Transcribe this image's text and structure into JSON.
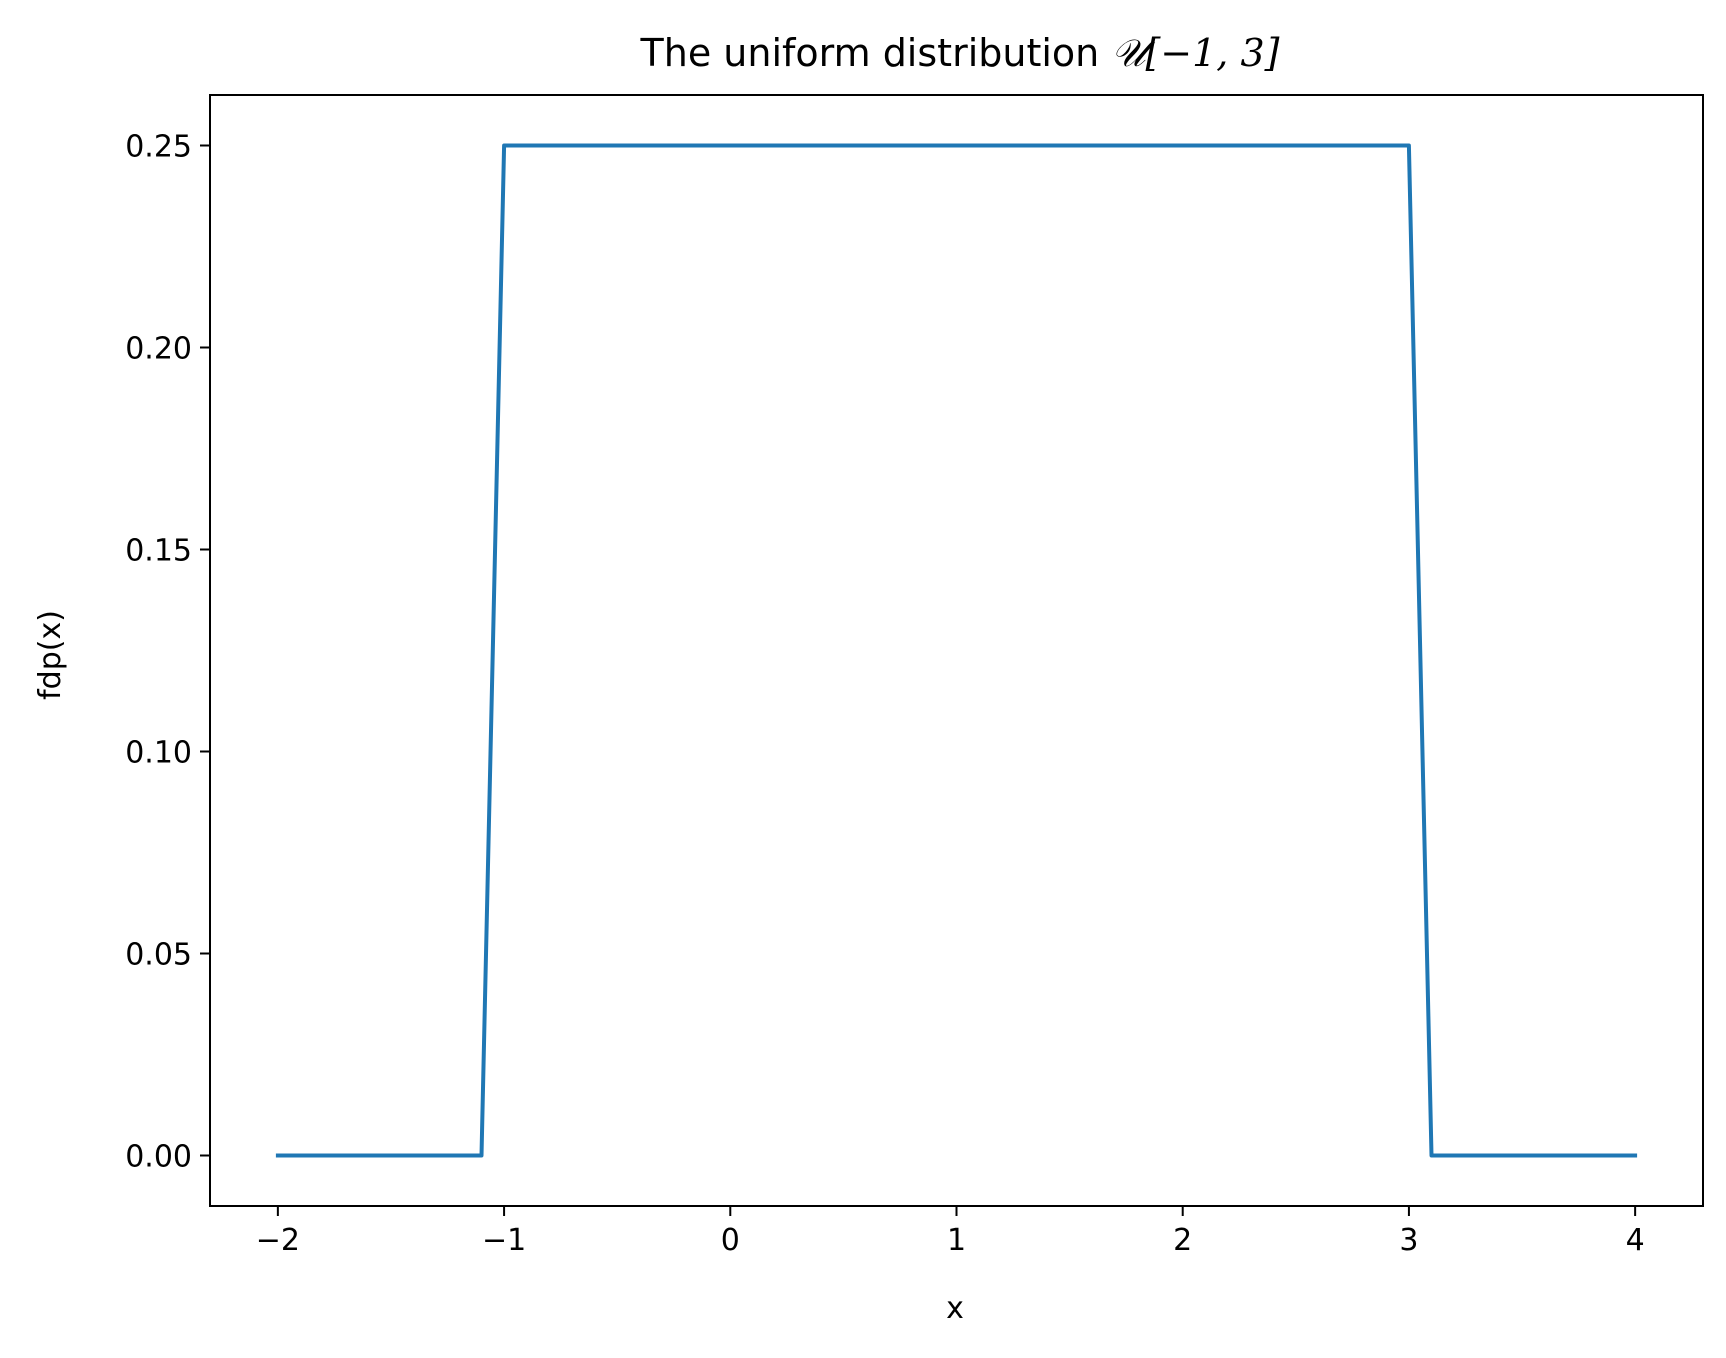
{
  "chart_data": {
    "type": "line",
    "title": "The uniform distribution",
    "title_math": "𝒰[−1, 3]",
    "xlabel": "x",
    "ylabel": "fdp(x)",
    "xlim": [
      -2.3,
      4.3
    ],
    "ylim": [
      -0.0125,
      0.2625
    ],
    "x_ticks": [
      -2,
      -1,
      0,
      1,
      2,
      3,
      4
    ],
    "x_tick_labels": [
      "−2",
      "−1",
      "0",
      "1",
      "2",
      "3",
      "4"
    ],
    "y_ticks": [
      0.0,
      0.05,
      0.1,
      0.15,
      0.2,
      0.25
    ],
    "y_tick_labels": [
      "0.00",
      "0.05",
      "0.10",
      "0.15",
      "0.20",
      "0.25"
    ],
    "grid": false,
    "series": [
      {
        "color": "#1f77b4",
        "x": [
          -2,
          -1.1,
          -1.0,
          3.0,
          3.1,
          4
        ],
        "y": [
          0.0,
          0.0,
          0.25,
          0.25,
          0.0,
          0.0
        ]
      }
    ]
  }
}
